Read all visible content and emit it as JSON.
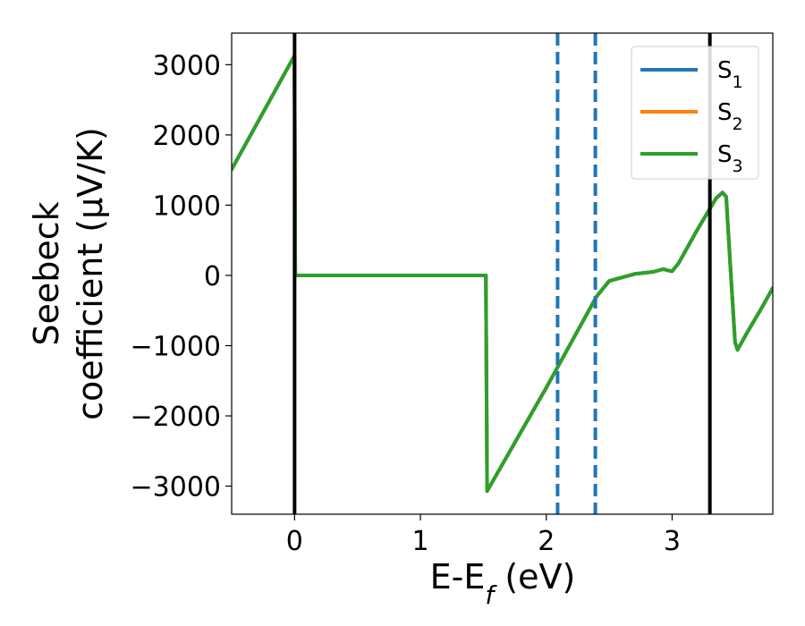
{
  "chart_data": {
    "type": "line",
    "xlabel": {
      "base": "E-E",
      "sub": "f",
      "suffix": " (eV)"
    },
    "ylabel": {
      "line1": "Seebeck",
      "line2": "coefficient  (μV/K)"
    },
    "xlim": [
      -0.5,
      3.8
    ],
    "ylim": [
      -3400,
      3450
    ],
    "xticks": [
      0,
      1,
      2,
      3
    ],
    "xtick_labels": [
      "0",
      "1",
      "2",
      "3"
    ],
    "yticks": [
      3000,
      2000,
      1000,
      0,
      -1000,
      -2000,
      -3000
    ],
    "ytick_labels": [
      "3000",
      "2000",
      "1000",
      "0",
      "−1000",
      "−2000",
      "−3000"
    ],
    "grid": false,
    "legend_position": "top-right",
    "vlines_solid": [
      0,
      3.3
    ],
    "vlines_dashed": [
      2.09,
      2.39
    ],
    "colors": {
      "s1": "#1f77b4",
      "s2": "#ff7f0e",
      "s3": "#2ca02c",
      "vline": "#000000",
      "dashed": "#1f77b4"
    },
    "series": [
      {
        "name": "S1",
        "label_base": "S",
        "label_sub": "1",
        "color": "#1f77b4",
        "x": [
          -0.5,
          0.0,
          0.005,
          1.52,
          1.525,
          1.53,
          2.0,
          2.4,
          2.5,
          2.7,
          2.85,
          2.93,
          2.97,
          3.0,
          3.05,
          3.2,
          3.35,
          3.4,
          3.43,
          3.46,
          3.5,
          3.52,
          3.6,
          3.7,
          3.8
        ],
        "values": [
          1510,
          3130,
          0,
          0,
          -1500,
          -3070,
          -1600,
          -300,
          -80,
          20,
          50,
          90,
          70,
          60,
          170,
          650,
          1100,
          1180,
          1120,
          200,
          -950,
          -1060,
          -800,
          -500,
          -180
        ]
      },
      {
        "name": "S2",
        "label_base": "S",
        "label_sub": "2",
        "color": "#ff7f0e",
        "x": [
          -0.5,
          0.0,
          0.005,
          1.52,
          1.525,
          1.53,
          2.0,
          2.4,
          2.5,
          2.7,
          2.85,
          2.93,
          2.97,
          3.0,
          3.05,
          3.2,
          3.35,
          3.4,
          3.43,
          3.46,
          3.5,
          3.52,
          3.6,
          3.7,
          3.8
        ],
        "values": [
          1510,
          3130,
          0,
          0,
          -1500,
          -3070,
          -1600,
          -300,
          -80,
          20,
          50,
          90,
          70,
          60,
          170,
          650,
          1100,
          1180,
          1120,
          200,
          -950,
          -1060,
          -800,
          -500,
          -180
        ]
      },
      {
        "name": "S3",
        "label_base": "S",
        "label_sub": "3",
        "color": "#2ca02c",
        "x": [
          -0.5,
          0.0,
          0.005,
          1.52,
          1.525,
          1.53,
          2.0,
          2.4,
          2.5,
          2.7,
          2.85,
          2.93,
          2.97,
          3.0,
          3.05,
          3.2,
          3.35,
          3.4,
          3.43,
          3.46,
          3.5,
          3.52,
          3.6,
          3.7,
          3.8
        ],
        "values": [
          1510,
          3130,
          0,
          0,
          -1500,
          -3070,
          -1600,
          -300,
          -80,
          20,
          50,
          90,
          70,
          60,
          170,
          650,
          1100,
          1180,
          1120,
          200,
          -950,
          -1060,
          -800,
          -500,
          -180
        ]
      }
    ]
  }
}
